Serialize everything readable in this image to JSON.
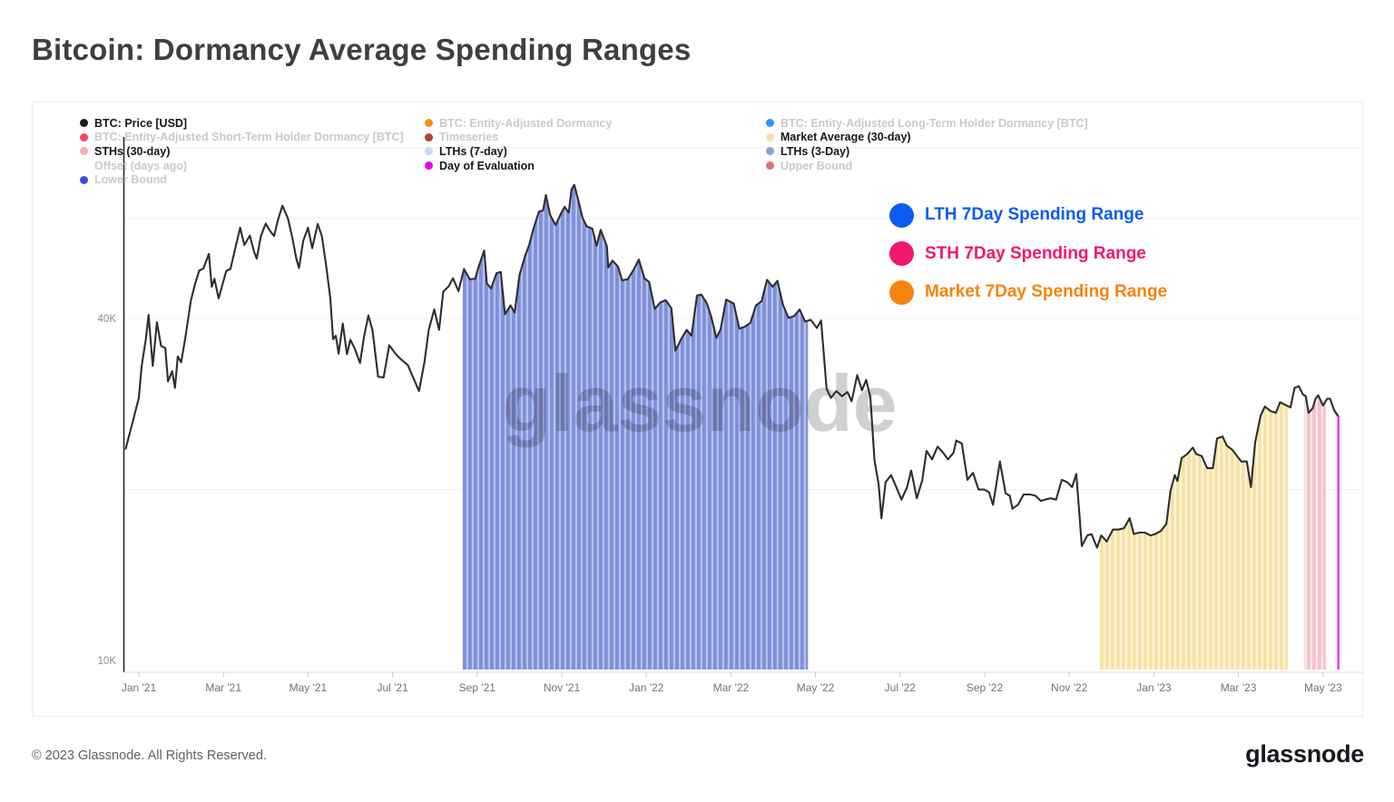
{
  "title": "Bitcoin: Dormancy Average Spending Ranges",
  "watermark": "glassnode",
  "footer": {
    "copyright": "© 2023 Glassnode. All Rights Reserved.",
    "logo": "glassnode"
  },
  "legend": {
    "columns": [
      {
        "items": [
          {
            "label": "BTC: Price [USD]",
            "color": "#1b1b1b",
            "active": true
          },
          {
            "label": "BTC: Entity-Adjusted Short-Term Holder Dormancy [BTC]",
            "color": "#f5465f",
            "active": false
          },
          {
            "label": "STHs (30-day)",
            "color": "#f9aeb5",
            "active": true
          },
          {
            "label": "Offset (days ago)",
            "color": null,
            "active": false
          },
          {
            "label": "Lower Bound",
            "color": "#3a4ed5",
            "active": false
          }
        ]
      },
      {
        "items": [
          {
            "label": "BTC: Entity-Adjusted Dormancy",
            "color": "#f6920f",
            "active": false
          },
          {
            "label": "Timeseries",
            "color": "#b34234",
            "active": false
          },
          {
            "label": "LTHs (7-day)",
            "color": "#c9d7f8",
            "active": true
          },
          {
            "label": "Day of Evaluation",
            "color": "#e800e8",
            "active": true
          }
        ]
      },
      {
        "items": [
          {
            "label": "BTC: Entity-Adjusted Long-Term Holder Dormancy [BTC]",
            "color": "#2e96f5",
            "active": false
          },
          {
            "label": "Market Average (30-day)",
            "color": "#f8dfa0",
            "active": true
          },
          {
            "label": "LTHs (3-Day)",
            "color": "#8f9fe3",
            "active": true
          },
          {
            "label": "Upper Bound",
            "color": "#e0706d",
            "active": false
          }
        ]
      }
    ]
  },
  "range_legend": {
    "items": [
      {
        "label": "LTH 7Day Spending Range",
        "color": "#0a5cf2"
      },
      {
        "label": "STH 7Day Spending Range",
        "color": "#f4156d"
      },
      {
        "label": "Market 7Day Spending Range",
        "color": "#f6830d"
      }
    ]
  },
  "chart_data": {
    "type": "line",
    "title": "Bitcoin: Dormancy Average Spending Ranges",
    "y_axis": {
      "scale": "log",
      "unit": "USD",
      "ticks": [
        {
          "label": "40K",
          "value": 40000
        },
        {
          "label": "10K",
          "value": 10000
        }
      ],
      "gridline_values": [
        80000,
        60000,
        40000,
        20000
      ]
    },
    "x_axis": {
      "ticks": [
        "Jan '21",
        "Mar '21",
        "May '21",
        "Jul '21",
        "Sep '21",
        "Nov '21",
        "Jan '22",
        "Mar '22",
        "May '22",
        "Jul '22",
        "Sep '22",
        "Nov '22",
        "Jan '23",
        "Mar '23",
        "May '23"
      ],
      "range": [
        "2020-12-22",
        "2023-06-01"
      ]
    },
    "price_series": {
      "name": "BTC: Price [USD]",
      "color": "#2e2e2e",
      "unit": "USD thousands",
      "points": [
        [
          "2020-12-22",
          23.6
        ],
        [
          "2020-12-27",
          26.3
        ],
        [
          "2021-01-01",
          29.0
        ],
        [
          "2021-01-03",
          33.0
        ],
        [
          "2021-01-06",
          36.8
        ],
        [
          "2021-01-08",
          40.6
        ],
        [
          "2021-01-11",
          33.0
        ],
        [
          "2021-01-14",
          39.4
        ],
        [
          "2021-01-17",
          35.8
        ],
        [
          "2021-01-20",
          35.5
        ],
        [
          "2021-01-22",
          31.0
        ],
        [
          "2021-01-25",
          32.3
        ],
        [
          "2021-01-27",
          30.2
        ],
        [
          "2021-01-29",
          34.3
        ],
        [
          "2021-02-01",
          33.5
        ],
        [
          "2021-02-04",
          37.0
        ],
        [
          "2021-02-08",
          43.0
        ],
        [
          "2021-02-11",
          46.0
        ],
        [
          "2021-02-14",
          48.6
        ],
        [
          "2021-02-17",
          49.0
        ],
        [
          "2021-02-21",
          52.0
        ],
        [
          "2021-02-23",
          45.5
        ],
        [
          "2021-02-25",
          47.0
        ],
        [
          "2021-02-28",
          43.4
        ],
        [
          "2021-03-03",
          48.5
        ],
        [
          "2021-03-06",
          48.9
        ],
        [
          "2021-03-09",
          52.5
        ],
        [
          "2021-03-13",
          57.8
        ],
        [
          "2021-03-16",
          53.9
        ],
        [
          "2021-03-20",
          56.0
        ],
        [
          "2021-03-23",
          52.5
        ],
        [
          "2021-03-25",
          51.0
        ],
        [
          "2021-03-28",
          55.9
        ],
        [
          "2021-04-01",
          58.8
        ],
        [
          "2021-04-04",
          57.1
        ],
        [
          "2021-04-07",
          55.9
        ],
        [
          "2021-04-10",
          59.9
        ],
        [
          "2021-04-13",
          63.2
        ],
        [
          "2021-04-17",
          60.0
        ],
        [
          "2021-04-20",
          55.7
        ],
        [
          "2021-04-23",
          51.0
        ],
        [
          "2021-04-25",
          49.1
        ],
        [
          "2021-04-28",
          54.8
        ],
        [
          "2021-05-01",
          57.8
        ],
        [
          "2021-05-04",
          53.2
        ],
        [
          "2021-05-08",
          58.7
        ],
        [
          "2021-05-11",
          55.8
        ],
        [
          "2021-05-14",
          49.7
        ],
        [
          "2021-05-17",
          43.5
        ],
        [
          "2021-05-19",
          36.8
        ],
        [
          "2021-05-21",
          37.3
        ],
        [
          "2021-05-23",
          34.7
        ],
        [
          "2021-05-26",
          39.2
        ],
        [
          "2021-05-29",
          34.6
        ],
        [
          "2021-06-01",
          36.7
        ],
        [
          "2021-06-04",
          35.5
        ],
        [
          "2021-06-08",
          33.4
        ],
        [
          "2021-06-11",
          37.3
        ],
        [
          "2021-06-14",
          40.5
        ],
        [
          "2021-06-17",
          38.1
        ],
        [
          "2021-06-21",
          31.6
        ],
        [
          "2021-06-25",
          31.5
        ],
        [
          "2021-06-29",
          35.9
        ],
        [
          "2021-07-03",
          34.7
        ],
        [
          "2021-07-07",
          33.9
        ],
        [
          "2021-07-12",
          33.1
        ],
        [
          "2021-07-16",
          31.4
        ],
        [
          "2021-07-20",
          29.8
        ],
        [
          "2021-07-24",
          33.6
        ],
        [
          "2021-07-27",
          38.2
        ],
        [
          "2021-07-31",
          41.5
        ],
        [
          "2021-08-04",
          38.2
        ],
        [
          "2021-08-07",
          44.6
        ],
        [
          "2021-08-11",
          45.6
        ],
        [
          "2021-08-14",
          47.1
        ],
        [
          "2021-08-18",
          44.7
        ],
        [
          "2021-08-22",
          48.9
        ],
        [
          "2021-08-26",
          46.9
        ],
        [
          "2021-08-30",
          47.0
        ],
        [
          "2021-09-02",
          49.3
        ],
        [
          "2021-09-06",
          52.7
        ],
        [
          "2021-09-08",
          46.1
        ],
        [
          "2021-09-11",
          45.2
        ],
        [
          "2021-09-15",
          48.1
        ],
        [
          "2021-09-18",
          48.3
        ],
        [
          "2021-09-21",
          40.7
        ],
        [
          "2021-09-25",
          42.2
        ],
        [
          "2021-09-28",
          41.0
        ],
        [
          "2021-10-01",
          47.7
        ],
        [
          "2021-10-05",
          51.5
        ],
        [
          "2021-10-08",
          53.9
        ],
        [
          "2021-10-11",
          57.5
        ],
        [
          "2021-10-15",
          61.7
        ],
        [
          "2021-10-18",
          62.0
        ],
        [
          "2021-10-20",
          66.0
        ],
        [
          "2021-10-23",
          60.9
        ],
        [
          "2021-10-27",
          58.4
        ],
        [
          "2021-10-31",
          61.3
        ],
        [
          "2021-11-03",
          62.9
        ],
        [
          "2021-11-06",
          61.5
        ],
        [
          "2021-11-08",
          67.5
        ],
        [
          "2021-11-10",
          68.8
        ],
        [
          "2021-11-13",
          64.4
        ],
        [
          "2021-11-16",
          60.1
        ],
        [
          "2021-11-19",
          58.1
        ],
        [
          "2021-11-23",
          57.6
        ],
        [
          "2021-11-26",
          53.7
        ],
        [
          "2021-11-29",
          57.3
        ],
        [
          "2021-12-03",
          53.6
        ],
        [
          "2021-12-04",
          49.2
        ],
        [
          "2021-12-07",
          50.6
        ],
        [
          "2021-12-11",
          49.4
        ],
        [
          "2021-12-14",
          46.7
        ],
        [
          "2021-12-18",
          46.9
        ],
        [
          "2021-12-22",
          48.6
        ],
        [
          "2021-12-26",
          50.8
        ],
        [
          "2021-12-30",
          47.1
        ],
        [
          "2022-01-03",
          46.4
        ],
        [
          "2022-01-07",
          41.6
        ],
        [
          "2022-01-11",
          42.7
        ],
        [
          "2022-01-15",
          43.1
        ],
        [
          "2022-01-19",
          41.7
        ],
        [
          "2022-01-22",
          35.1
        ],
        [
          "2022-01-26",
          36.8
        ],
        [
          "2022-01-30",
          38.2
        ],
        [
          "2022-02-03",
          37.3
        ],
        [
          "2022-02-07",
          43.9
        ],
        [
          "2022-02-10",
          44.1
        ],
        [
          "2022-02-14",
          42.6
        ],
        [
          "2022-02-17",
          40.5
        ],
        [
          "2022-02-21",
          37.0
        ],
        [
          "2022-02-24",
          38.3
        ],
        [
          "2022-02-28",
          43.2
        ],
        [
          "2022-03-03",
          42.5
        ],
        [
          "2022-03-07",
          38.4
        ],
        [
          "2022-03-11",
          38.7
        ],
        [
          "2022-03-15",
          39.3
        ],
        [
          "2022-03-19",
          42.2
        ],
        [
          "2022-03-23",
          42.9
        ],
        [
          "2022-03-27",
          46.8
        ],
        [
          "2022-03-31",
          45.5
        ],
        [
          "2022-04-04",
          46.6
        ],
        [
          "2022-04-08",
          42.3
        ],
        [
          "2022-04-12",
          40.1
        ],
        [
          "2022-04-16",
          40.4
        ],
        [
          "2022-04-20",
          41.5
        ],
        [
          "2022-04-24",
          39.5
        ],
        [
          "2022-04-28",
          39.8
        ],
        [
          "2022-05-02",
          38.5
        ],
        [
          "2022-05-05",
          39.7
        ],
        [
          "2022-05-09",
          30.1
        ],
        [
          "2022-05-12",
          29.0
        ],
        [
          "2022-05-16",
          29.8
        ],
        [
          "2022-05-20",
          29.2
        ],
        [
          "2022-05-24",
          29.7
        ],
        [
          "2022-05-27",
          28.6
        ],
        [
          "2022-05-31",
          31.8
        ],
        [
          "2022-06-04",
          29.9
        ],
        [
          "2022-06-07",
          31.2
        ],
        [
          "2022-06-10",
          29.1
        ],
        [
          "2022-06-13",
          22.5
        ],
        [
          "2022-06-16",
          20.4
        ],
        [
          "2022-06-18",
          17.8
        ],
        [
          "2022-06-21",
          20.6
        ],
        [
          "2022-06-25",
          21.2
        ],
        [
          "2022-06-29",
          20.1
        ],
        [
          "2022-07-02",
          19.2
        ],
        [
          "2022-07-06",
          20.2
        ],
        [
          "2022-07-09",
          21.6
        ],
        [
          "2022-07-13",
          19.3
        ],
        [
          "2022-07-17",
          20.8
        ],
        [
          "2022-07-20",
          23.4
        ],
        [
          "2022-07-24",
          22.6
        ],
        [
          "2022-07-28",
          23.8
        ],
        [
          "2022-08-01",
          23.3
        ],
        [
          "2022-08-05",
          22.6
        ],
        [
          "2022-08-09",
          23.2
        ],
        [
          "2022-08-11",
          24.4
        ],
        [
          "2022-08-15",
          24.1
        ],
        [
          "2022-08-19",
          20.8
        ],
        [
          "2022-08-23",
          21.4
        ],
        [
          "2022-08-27",
          20.0
        ],
        [
          "2022-08-31",
          20.0
        ],
        [
          "2022-09-04",
          19.8
        ],
        [
          "2022-09-07",
          18.8
        ],
        [
          "2022-09-12",
          22.4
        ],
        [
          "2022-09-16",
          19.7
        ],
        [
          "2022-09-19",
          19.5
        ],
        [
          "2022-09-21",
          18.5
        ],
        [
          "2022-09-25",
          18.8
        ],
        [
          "2022-09-29",
          19.6
        ],
        [
          "2022-10-03",
          19.6
        ],
        [
          "2022-10-07",
          19.5
        ],
        [
          "2022-10-11",
          19.1
        ],
        [
          "2022-10-14",
          19.2
        ],
        [
          "2022-10-18",
          19.3
        ],
        [
          "2022-10-22",
          19.2
        ],
        [
          "2022-10-26",
          20.8
        ],
        [
          "2022-10-30",
          20.6
        ],
        [
          "2022-11-03",
          20.2
        ],
        [
          "2022-11-06",
          21.3
        ],
        [
          "2022-11-08",
          18.5
        ],
        [
          "2022-11-10",
          15.9
        ],
        [
          "2022-11-14",
          16.6
        ],
        [
          "2022-11-17",
          16.7
        ],
        [
          "2022-11-21",
          15.8
        ],
        [
          "2022-11-24",
          16.6
        ],
        [
          "2022-11-28",
          16.2
        ],
        [
          "2022-12-02",
          17.0
        ],
        [
          "2022-12-06",
          17.0
        ],
        [
          "2022-12-10",
          17.1
        ],
        [
          "2022-12-14",
          17.8
        ],
        [
          "2022-12-17",
          16.7
        ],
        [
          "2022-12-21",
          16.8
        ],
        [
          "2022-12-25",
          16.8
        ],
        [
          "2022-12-29",
          16.6
        ],
        [
          "2023-01-02",
          16.7
        ],
        [
          "2023-01-06",
          16.9
        ],
        [
          "2023-01-10",
          17.4
        ],
        [
          "2023-01-13",
          19.9
        ],
        [
          "2023-01-16",
          21.2
        ],
        [
          "2023-01-18",
          20.7
        ],
        [
          "2023-01-21",
          22.7
        ],
        [
          "2023-01-25",
          23.1
        ],
        [
          "2023-01-29",
          23.7
        ],
        [
          "2023-02-01",
          23.1
        ],
        [
          "2023-02-05",
          22.9
        ],
        [
          "2023-02-09",
          21.8
        ],
        [
          "2023-02-13",
          21.8
        ],
        [
          "2023-02-16",
          24.6
        ],
        [
          "2023-02-20",
          24.8
        ],
        [
          "2023-02-23",
          23.9
        ],
        [
          "2023-02-27",
          23.5
        ],
        [
          "2023-03-03",
          22.4
        ],
        [
          "2023-03-07",
          22.4
        ],
        [
          "2023-03-10",
          20.2
        ],
        [
          "2023-03-13",
          24.2
        ],
        [
          "2023-03-17",
          27.0
        ],
        [
          "2023-03-20",
          28.0
        ],
        [
          "2023-03-24",
          27.5
        ],
        [
          "2023-03-28",
          27.3
        ],
        [
          "2023-03-31",
          28.5
        ],
        [
          "2023-04-04",
          28.2
        ],
        [
          "2023-04-08",
          27.9
        ],
        [
          "2023-04-11",
          30.2
        ],
        [
          "2023-04-14",
          30.4
        ],
        [
          "2023-04-17",
          29.4
        ],
        [
          "2023-04-19",
          29.2
        ],
        [
          "2023-04-21",
          27.3
        ],
        [
          "2023-04-24",
          27.8
        ],
        [
          "2023-04-26",
          28.9
        ],
        [
          "2023-04-28",
          29.3
        ],
        [
          "2023-05-01",
          28.1
        ],
        [
          "2023-05-04",
          28.9
        ],
        [
          "2023-05-06",
          28.9
        ],
        [
          "2023-05-09",
          27.6
        ],
        [
          "2023-05-12",
          26.9
        ]
      ]
    },
    "bands": [
      {
        "name": "LTH 7Day Spending Range",
        "start": "2021-08-21",
        "end": "2022-04-26",
        "stripe_dark": "#7e90da",
        "stripe_light": "#b7c1ec"
      },
      {
        "name": "Market 7Day Spending Range",
        "start": "2022-11-23",
        "end": "2023-04-06",
        "stripe_dark": "#f7e2a6",
        "stripe_light": "#fdf4dc"
      },
      {
        "name": "STH 7Day Spending Range",
        "start": "2023-04-18",
        "end": "2023-05-03",
        "stripe_dark": "#f7c1c9",
        "stripe_light": "#fde9ec"
      }
    ],
    "evaluation_line": {
      "name": "Day of Evaluation",
      "date": "2023-05-12",
      "color": "#e432f0"
    }
  }
}
